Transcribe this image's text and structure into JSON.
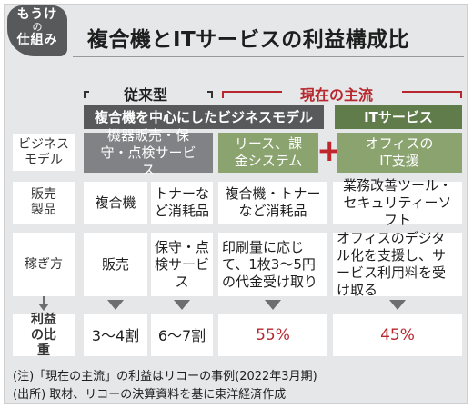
{
  "badge": {
    "line1": "もうけ",
    "line2": "の",
    "line3": "仕組み"
  },
  "title": "複合機とITサービスの利益構成比",
  "groups": {
    "traditional": "従来型",
    "current": "現在の主流"
  },
  "banners": {
    "multifunction_model": "複合機を中心にしたビジネスモデル",
    "it_services": "ITサービス"
  },
  "rows": {
    "business_model": {
      "label": "ビジネスモデル",
      "equipment": "機器販売・保守・点検サービス",
      "lease": "リース、課金システム",
      "office_it": "オフィスのIT支援"
    },
    "products": {
      "label": "販売製品",
      "col1": "複合機",
      "col2": "トナーなど消耗品",
      "col3": "複合機・トナーなど消耗品",
      "col4": "業務改善ツール・セキュリティーソフト"
    },
    "earning": {
      "label": "稼ぎ方",
      "col1": "販売",
      "col2": "保守・点検サービス",
      "col3": "印刷量に応じて、1枚3～5円の代金受け取り",
      "col4": "オフィスのデジタル化を支援し、サービス利用料を受け取る"
    },
    "profit_share": {
      "label": "利益の比重",
      "col1": "3～4割",
      "col2": "6～7割",
      "col3": "55%",
      "col4": "45%"
    }
  },
  "plus_symbol": "+",
  "notes": {
    "note1": "(注)「現在の主流」の利益はリコーの事例(2022年3月期)",
    "note2": "(出所) 取材、リコーの決算資料を基に東洋経済作成"
  },
  "colors": {
    "grey": "#808285",
    "green": "#8aa36f",
    "dark_green": "#5f7c4a",
    "red": "#b7282e"
  }
}
